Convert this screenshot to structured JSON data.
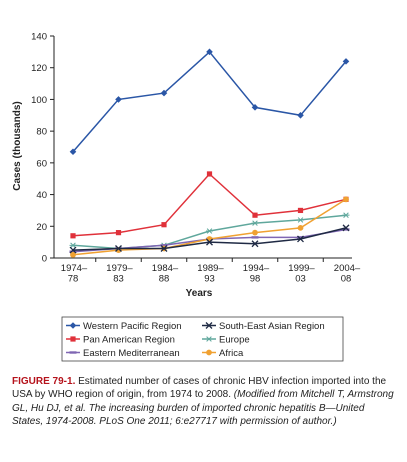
{
  "chart_data": {
    "type": "line",
    "categories": [
      [
        "1974–",
        "78"
      ],
      [
        "1979–",
        "83"
      ],
      [
        "1984–",
        "88"
      ],
      [
        "1989–",
        "93"
      ],
      [
        "1994–",
        "98"
      ],
      [
        "1999–",
        "03"
      ],
      [
        "2004–",
        "08"
      ]
    ],
    "xlabel": "Years",
    "ylabel": "Cases (thousands)",
    "ylim": [
      0,
      140
    ],
    "yticks": [
      0,
      20,
      40,
      60,
      80,
      100,
      120,
      140
    ],
    "grid": false,
    "legend_position": "below-chart",
    "series": [
      {
        "name": "Western Pacific Region",
        "values": [
          67,
          100,
          104,
          130,
          95,
          90,
          124
        ],
        "color": "#2a56a6",
        "marker": "diamond"
      },
      {
        "name": "South-East Asian Region",
        "values": [
          5,
          6,
          6,
          10,
          9,
          12,
          19
        ],
        "color": "#1f2a44",
        "marker": "cross"
      },
      {
        "name": "Pan American Region",
        "values": [
          14,
          16,
          21,
          53,
          27,
          30,
          37
        ],
        "color": "#e0313a",
        "marker": "square"
      },
      {
        "name": "Europe",
        "values": [
          8,
          6,
          8,
          17,
          22,
          24,
          27
        ],
        "color": "#5fa79c",
        "marker": "star"
      },
      {
        "name": "Eastern Mediterranean",
        "values": [
          4,
          6,
          8,
          12,
          13,
          13,
          18
        ],
        "color": "#7f66b3",
        "marker": "dash"
      },
      {
        "name": "Africa",
        "values": [
          2,
          5,
          6,
          12,
          16,
          19,
          37
        ],
        "color": "#f0a132",
        "marker": "circle"
      }
    ]
  },
  "caption": {
    "label": "FIGURE 79-1.",
    "text": " Estimated number of cases of chronic HBV infection imported into the USA by WHO region of origin, from 1974 to 2008. ",
    "credit": "(Modified from Mitchell T, Armstrong GL, Hu DJ, et al. The increasing burden of imported chronic hepatitis B—United States, 1974-2008. PLoS One 2011; 6:e27717 with permission of author.)"
  }
}
